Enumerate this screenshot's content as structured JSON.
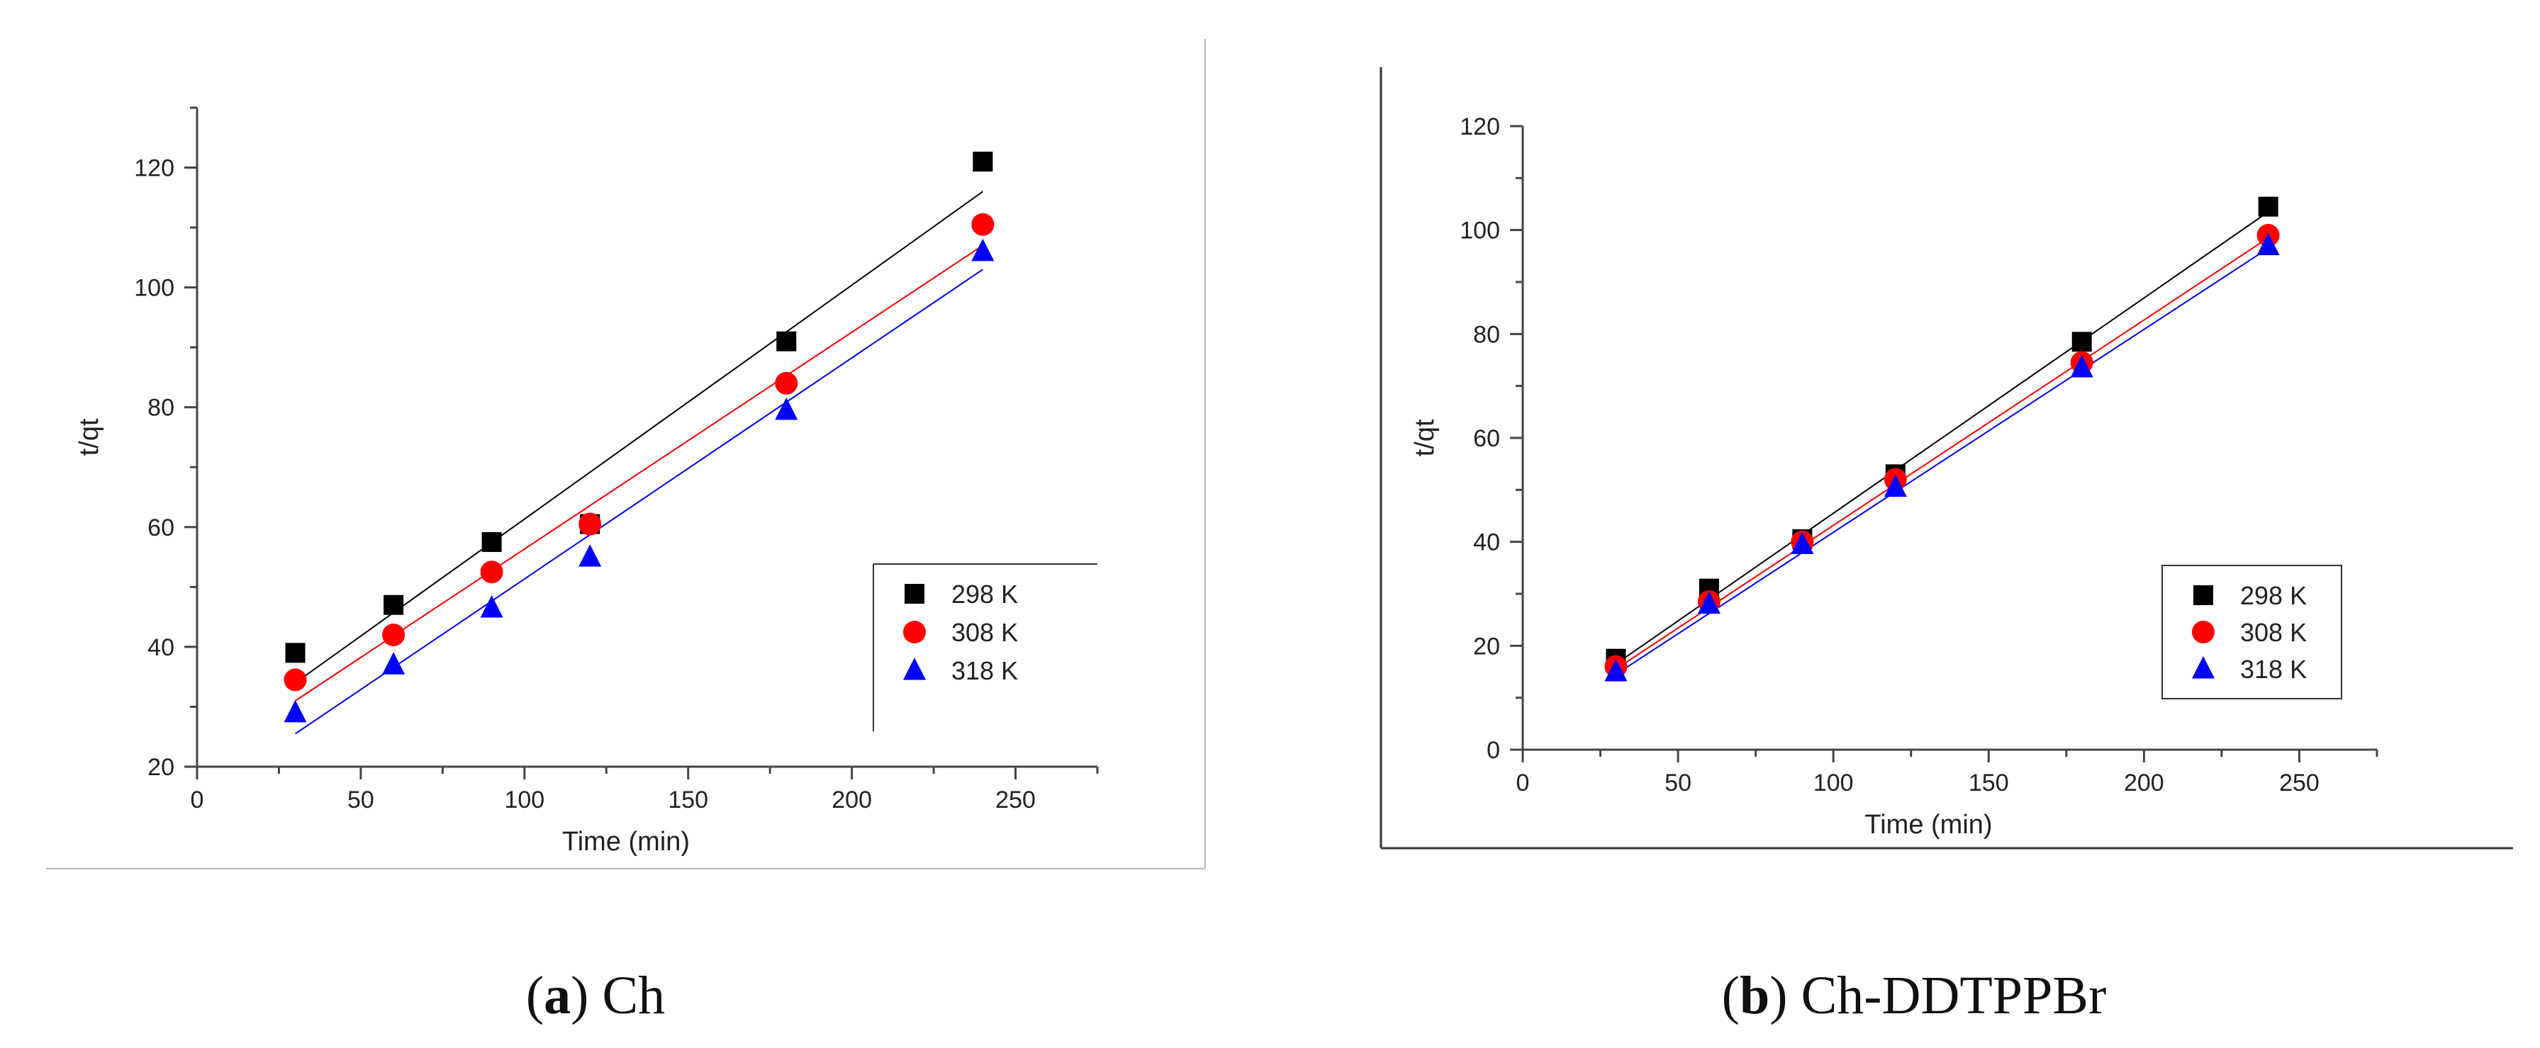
{
  "captions": [
    {
      "letter": "a",
      "label": "Ch"
    },
    {
      "letter": "b",
      "label": "Ch-DDTPPBr"
    }
  ],
  "series_colors": {
    "298 K": "#000000",
    "308 K": "#ff0000",
    "318 K": "#0000ff"
  },
  "chart_data": [
    {
      "id": "a",
      "type": "scatter",
      "title": "",
      "xlabel": "Time (min)",
      "ylabel": "t/qt",
      "xlim": [
        0,
        275
      ],
      "ylim": [
        20,
        130
      ],
      "xticks": [
        0,
        50,
        100,
        150,
        200,
        250
      ],
      "yticks": [
        20,
        40,
        60,
        80,
        100,
        120
      ],
      "legend_position": "lower-right",
      "series": [
        {
          "name": "298 K",
          "marker": "square",
          "color": "#000000",
          "x": [
            30,
            60,
            90,
            120,
            180,
            240
          ],
          "y": [
            39,
            47,
            57.5,
            60.5,
            91,
            121
          ],
          "fit": {
            "x": [
              30,
              240
            ],
            "y": [
              34,
              116
            ]
          }
        },
        {
          "name": "308 K",
          "marker": "circle",
          "color": "#ff0000",
          "x": [
            30,
            60,
            90,
            120,
            180,
            240
          ],
          "y": [
            34.5,
            42,
            52.5,
            60.5,
            84,
            110.5
          ],
          "fit": {
            "x": [
              30,
              240
            ],
            "y": [
              31,
              107
            ]
          }
        },
        {
          "name": "318 K",
          "marker": "triangle",
          "color": "#0000ff",
          "x": [
            30,
            60,
            90,
            120,
            180,
            240
          ],
          "y": [
            29,
            37,
            46.5,
            55,
            79.5,
            106
          ],
          "fit": {
            "x": [
              30,
              240
            ],
            "y": [
              25.5,
              103
            ]
          }
        }
      ]
    },
    {
      "id": "b",
      "type": "scatter",
      "title": "",
      "xlabel": "Time (min)",
      "ylabel": "t/qt",
      "xlim": [
        0,
        275
      ],
      "ylim": [
        0,
        120
      ],
      "xticks": [
        0,
        50,
        100,
        150,
        200,
        250
      ],
      "yticks": [
        0,
        20,
        40,
        60,
        80,
        100,
        120
      ],
      "legend_position": "lower-right",
      "series": [
        {
          "name": "298 K",
          "marker": "square",
          "color": "#000000",
          "x": [
            30,
            60,
            90,
            120,
            180,
            240
          ],
          "y": [
            17.5,
            31,
            40.5,
            53,
            78.5,
            104.5
          ],
          "fit": {
            "x": [
              30,
              240
            ],
            "y": [
              16.5,
              103.5
            ]
          }
        },
        {
          "name": "308 K",
          "marker": "circle",
          "color": "#ff0000",
          "x": [
            30,
            60,
            90,
            120,
            180,
            240
          ],
          "y": [
            16,
            28.5,
            40,
            52,
            74.5,
            99
          ],
          "fit": {
            "x": [
              30,
              240
            ],
            "y": [
              15.5,
              98.5
            ]
          }
        },
        {
          "name": "318 K",
          "marker": "triangle",
          "color": "#0000ff",
          "x": [
            30,
            60,
            90,
            120,
            180,
            240
          ],
          "y": [
            15,
            28,
            39.5,
            50.5,
            73.5,
            97
          ],
          "fit": {
            "x": [
              30,
              240
            ],
            "y": [
              14.5,
              96.5
            ]
          }
        }
      ]
    }
  ]
}
